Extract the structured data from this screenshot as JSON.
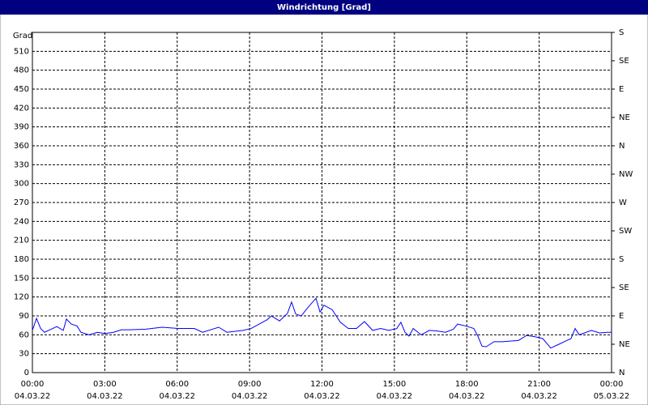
{
  "chart_data": {
    "type": "line",
    "title": "Windrichtung [Grad]",
    "ylabel": "Grad",
    "x": [
      0,
      0.17,
      0.34,
      0.5,
      0.84,
      1.01,
      1.28,
      1.41,
      1.61,
      1.85,
      2.01,
      2.35,
      2.69,
      3.02,
      3.36,
      3.69,
      4.03,
      4.7,
      5.37,
      6.04,
      6.71,
      7.05,
      7.72,
      8.06,
      8.73,
      9.06,
      9.4,
      9.73,
      9.9,
      10.24,
      10.57,
      10.74,
      10.91,
      11.14,
      11.41,
      11.75,
      11.92,
      12.08,
      12.42,
      12.76,
      13.09,
      13.43,
      13.76,
      14.1,
      14.43,
      14.77,
      15.1,
      15.27,
      15.44,
      15.61,
      15.78,
      16.11,
      16.45,
      16.78,
      17.12,
      17.45,
      17.62,
      17.96,
      18.29,
      18.46,
      18.63,
      18.8,
      19.13,
      19.47,
      20.14,
      20.48,
      20.81,
      21.15,
      21.48,
      21.82,
      22.15,
      22.32,
      22.49,
      22.66,
      23.16,
      23.5,
      23.83,
      24
    ],
    "series": [
      {
        "name": "Windrichtung",
        "color": "#0000ff",
        "values": [
          67,
          86,
          70,
          64,
          70,
          73,
          67,
          85,
          77,
          74,
          64,
          60,
          64,
          62,
          64,
          68,
          68,
          69,
          72,
          70,
          70,
          64,
          72,
          64,
          67,
          70,
          77,
          84,
          90,
          82,
          94,
          112,
          93,
          90,
          103,
          118,
          96,
          107,
          100,
          80,
          70,
          70,
          81,
          67,
          70,
          67,
          70,
          80,
          64,
          58,
          70,
          60,
          67,
          66,
          64,
          69,
          77,
          74,
          70,
          58,
          42,
          41,
          49,
          49,
          51,
          59,
          57,
          54,
          39,
          45,
          51,
          54,
          70,
          60,
          67,
          63,
          64,
          64
        ]
      }
    ],
    "xlim": [
      0,
      24
    ],
    "xticks": [
      {
        "value": 0,
        "label": "00:00"
      },
      {
        "value": 3,
        "label": "03:00"
      },
      {
        "value": 6,
        "label": "06:00"
      },
      {
        "value": 9,
        "label": "09:00"
      },
      {
        "value": 12,
        "label": "12:00"
      },
      {
        "value": 15,
        "label": "15:00"
      },
      {
        "value": 18,
        "label": "18:00"
      },
      {
        "value": 21,
        "label": "21:00"
      },
      {
        "value": 24,
        "label": "00:00"
      }
    ],
    "xtick_dates": [
      "04.03.22",
      "04.03.22",
      "04.03.22",
      "04.03.22",
      "04.03.22",
      "04.03.22",
      "04.03.22",
      "04.03.22",
      "05.03.22"
    ],
    "ylim": [
      0,
      540
    ],
    "yticks": [
      0,
      30,
      60,
      90,
      120,
      150,
      180,
      210,
      240,
      270,
      300,
      330,
      360,
      390,
      420,
      450,
      480,
      510
    ],
    "y2lim": [
      0,
      540
    ],
    "y2ticks": [
      {
        "value": 0,
        "label": "N"
      },
      {
        "value": 45,
        "label": "NE"
      },
      {
        "value": 90,
        "label": "E"
      },
      {
        "value": 135,
        "label": "SE"
      },
      {
        "value": 180,
        "label": "S"
      },
      {
        "value": 225,
        "label": "SW"
      },
      {
        "value": 270,
        "label": "W"
      },
      {
        "value": 315,
        "label": "NW"
      },
      {
        "value": 360,
        "label": "N"
      },
      {
        "value": 405,
        "label": "NE"
      },
      {
        "value": 450,
        "label": "E"
      },
      {
        "value": 495,
        "label": "SE"
      },
      {
        "value": 540,
        "label": "S"
      }
    ],
    "grid": true
  }
}
